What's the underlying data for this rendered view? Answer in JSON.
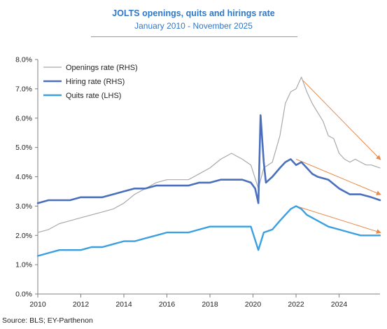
{
  "header": {
    "title": "JOLTS openings, quits and hirings rate",
    "subtitle": "January 2010 - November 2025"
  },
  "footer": {
    "source": "Source: BLS; EY-Parthenon"
  },
  "colors": {
    "openings": "#a9a9a9",
    "hiring": "#4a6fbd",
    "quits": "#3aa0e0",
    "trend_arrow": "#e88a4a",
    "axis": "#7f7f7f"
  },
  "chart_data": {
    "type": "line",
    "title": "JOLTS openings, quits and hirings rate",
    "subtitle": "January 2010 - November 2025",
    "xlabel": "",
    "ylabel": "",
    "xlim": [
      2010,
      2025.9
    ],
    "ylim": [
      0,
      8
    ],
    "x_ticks": [
      "2010",
      "2012",
      "2014",
      "2016",
      "2018",
      "2020",
      "2022",
      "2024"
    ],
    "y_ticks": [
      "0.0%",
      "1.0%",
      "2.0%",
      "3.0%",
      "4.0%",
      "5.0%",
      "6.0%",
      "7.0%",
      "8.0%"
    ],
    "grid": false,
    "legend_position": "top-left",
    "series": [
      {
        "name": "Openings rate (RHS)",
        "color": "#a9a9a9",
        "points": [
          [
            2010.0,
            2.1
          ],
          [
            2010.5,
            2.2
          ],
          [
            2011.0,
            2.4
          ],
          [
            2011.5,
            2.5
          ],
          [
            2012.0,
            2.6
          ],
          [
            2012.5,
            2.7
          ],
          [
            2013.0,
            2.8
          ],
          [
            2013.5,
            2.9
          ],
          [
            2014.0,
            3.1
          ],
          [
            2014.5,
            3.4
          ],
          [
            2015.0,
            3.6
          ],
          [
            2015.5,
            3.8
          ],
          [
            2016.0,
            3.9
          ],
          [
            2016.5,
            3.9
          ],
          [
            2017.0,
            3.9
          ],
          [
            2017.5,
            4.1
          ],
          [
            2018.0,
            4.3
          ],
          [
            2018.5,
            4.6
          ],
          [
            2019.0,
            4.8
          ],
          [
            2019.5,
            4.6
          ],
          [
            2019.9,
            4.4
          ],
          [
            2020.25,
            3.6
          ],
          [
            2020.5,
            4.3
          ],
          [
            2020.9,
            4.5
          ],
          [
            2021.25,
            5.4
          ],
          [
            2021.5,
            6.5
          ],
          [
            2021.75,
            6.9
          ],
          [
            2022.0,
            7.0
          ],
          [
            2022.25,
            7.4
          ],
          [
            2022.5,
            6.9
          ],
          [
            2022.75,
            6.5
          ],
          [
            2023.0,
            6.2
          ],
          [
            2023.25,
            5.9
          ],
          [
            2023.5,
            5.4
          ],
          [
            2023.75,
            5.3
          ],
          [
            2024.0,
            4.8
          ],
          [
            2024.25,
            4.6
          ],
          [
            2024.5,
            4.5
          ],
          [
            2024.75,
            4.6
          ],
          [
            2025.0,
            4.5
          ],
          [
            2025.25,
            4.4
          ],
          [
            2025.5,
            4.4
          ],
          [
            2025.9,
            4.3
          ]
        ]
      },
      {
        "name": "Hiring rate (RHS)",
        "color": "#4a6fbd",
        "points": [
          [
            2010.0,
            3.1
          ],
          [
            2010.5,
            3.2
          ],
          [
            2011.0,
            3.2
          ],
          [
            2011.5,
            3.2
          ],
          [
            2012.0,
            3.3
          ],
          [
            2012.5,
            3.3
          ],
          [
            2013.0,
            3.3
          ],
          [
            2013.5,
            3.4
          ],
          [
            2014.0,
            3.5
          ],
          [
            2014.5,
            3.6
          ],
          [
            2015.0,
            3.6
          ],
          [
            2015.5,
            3.7
          ],
          [
            2016.0,
            3.7
          ],
          [
            2016.5,
            3.7
          ],
          [
            2017.0,
            3.7
          ],
          [
            2017.5,
            3.8
          ],
          [
            2018.0,
            3.8
          ],
          [
            2018.5,
            3.9
          ],
          [
            2019.0,
            3.9
          ],
          [
            2019.5,
            3.9
          ],
          [
            2019.9,
            3.8
          ],
          [
            2020.1,
            3.6
          ],
          [
            2020.25,
            3.1
          ],
          [
            2020.35,
            6.1
          ],
          [
            2020.5,
            4.5
          ],
          [
            2020.6,
            3.8
          ],
          [
            2020.9,
            4.0
          ],
          [
            2021.25,
            4.3
          ],
          [
            2021.5,
            4.5
          ],
          [
            2021.75,
            4.6
          ],
          [
            2022.0,
            4.4
          ],
          [
            2022.25,
            4.5
          ],
          [
            2022.5,
            4.3
          ],
          [
            2022.75,
            4.1
          ],
          [
            2023.0,
            4.0
          ],
          [
            2023.5,
            3.9
          ],
          [
            2024.0,
            3.6
          ],
          [
            2024.5,
            3.4
          ],
          [
            2025.0,
            3.4
          ],
          [
            2025.5,
            3.3
          ],
          [
            2025.9,
            3.2
          ]
        ]
      },
      {
        "name": "Quits rate (LHS)",
        "color": "#3aa0e0",
        "points": [
          [
            2010.0,
            1.3
          ],
          [
            2010.5,
            1.4
          ],
          [
            2011.0,
            1.5
          ],
          [
            2011.5,
            1.5
          ],
          [
            2012.0,
            1.5
          ],
          [
            2012.5,
            1.6
          ],
          [
            2013.0,
            1.6
          ],
          [
            2013.5,
            1.7
          ],
          [
            2014.0,
            1.8
          ],
          [
            2014.5,
            1.8
          ],
          [
            2015.0,
            1.9
          ],
          [
            2015.5,
            2.0
          ],
          [
            2016.0,
            2.1
          ],
          [
            2016.5,
            2.1
          ],
          [
            2017.0,
            2.1
          ],
          [
            2017.5,
            2.2
          ],
          [
            2018.0,
            2.3
          ],
          [
            2018.5,
            2.3
          ],
          [
            2019.0,
            2.3
          ],
          [
            2019.5,
            2.3
          ],
          [
            2019.9,
            2.3
          ],
          [
            2020.25,
            1.5
          ],
          [
            2020.5,
            2.1
          ],
          [
            2020.9,
            2.2
          ],
          [
            2021.25,
            2.5
          ],
          [
            2021.5,
            2.7
          ],
          [
            2021.75,
            2.9
          ],
          [
            2022.0,
            3.0
          ],
          [
            2022.25,
            2.9
          ],
          [
            2022.5,
            2.7
          ],
          [
            2022.75,
            2.6
          ],
          [
            2023.0,
            2.5
          ],
          [
            2023.5,
            2.3
          ],
          [
            2024.0,
            2.2
          ],
          [
            2024.5,
            2.1
          ],
          [
            2025.0,
            2.0
          ],
          [
            2025.5,
            2.0
          ],
          [
            2025.9,
            2.0
          ]
        ]
      }
    ],
    "trend_arrows": [
      {
        "from": [
          2022.3,
          7.3
        ],
        "to": [
          2025.9,
          4.6
        ]
      },
      {
        "from": [
          2022.0,
          4.6
        ],
        "to": [
          2025.9,
          3.4
        ]
      },
      {
        "from": [
          2022.0,
          3.0
        ],
        "to": [
          2025.9,
          2.1
        ]
      }
    ]
  }
}
